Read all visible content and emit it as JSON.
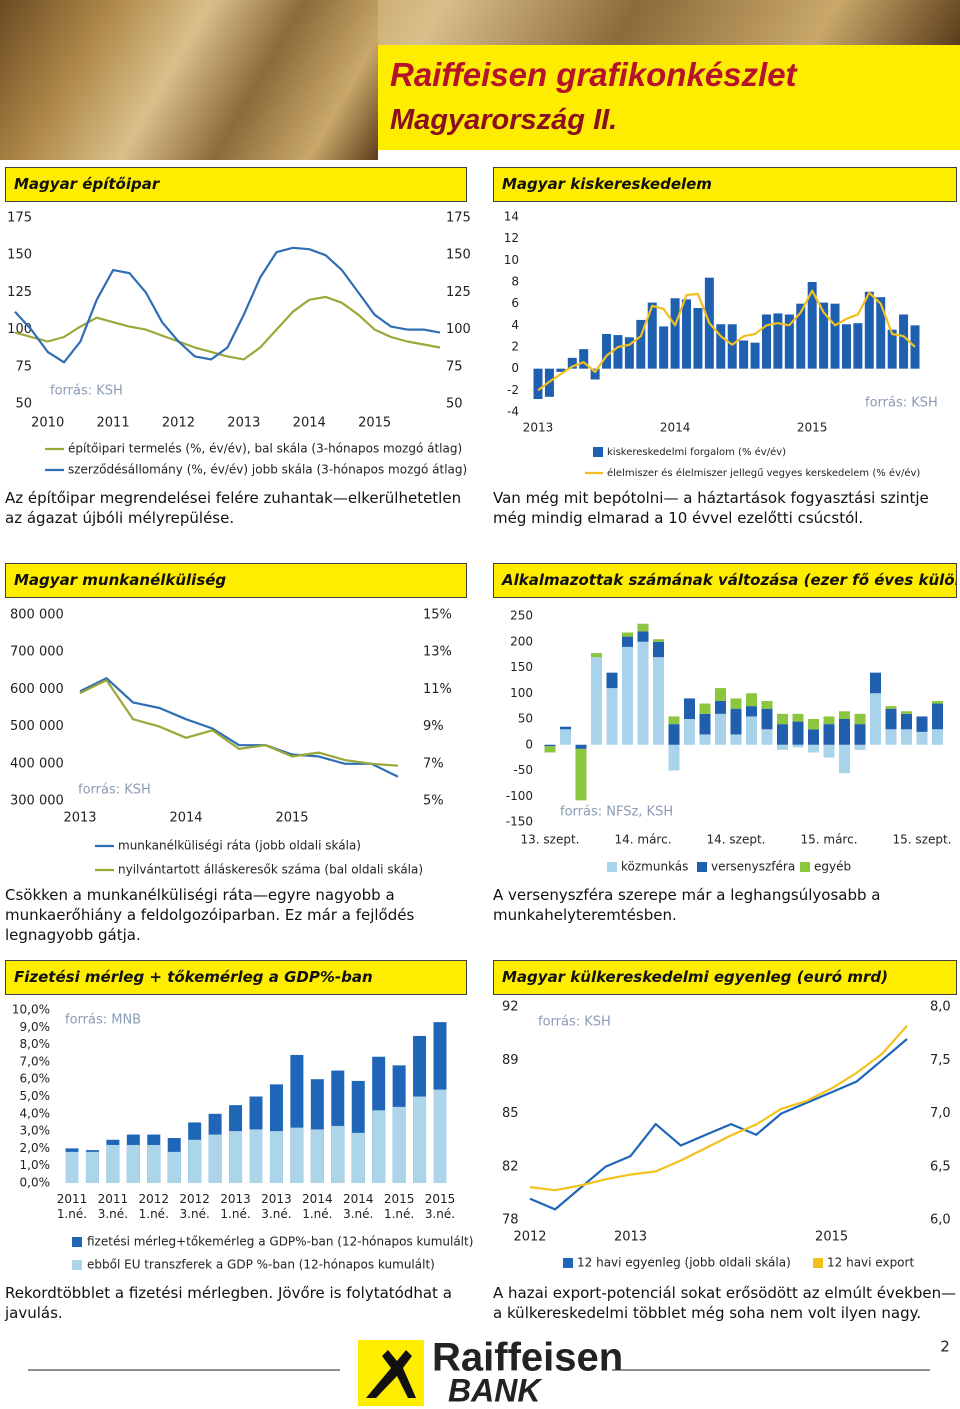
{
  "header": {
    "title": "Raiffeisen grafikonkészlet",
    "subtitle": "Magyarország II."
  },
  "chart_data": [
    {
      "type": "line",
      "title": "Magyar építőipar",
      "source": "forrás: KSH",
      "caption": "Az építőipar megrendelései felére zuhantak—elkerülhetetlen az ágazat újbóli mélyrepülése.",
      "categories": [
        null,
        null,
        "2010",
        null,
        null,
        null,
        "2011",
        null,
        null,
        null,
        "2012",
        null,
        null,
        null,
        "2013",
        null,
        null,
        null,
        "2014",
        null,
        null,
        null,
        "2015",
        null,
        null,
        null,
        null
      ],
      "series": [
        {
          "name": "építőipari termelés (%, év/év), bal skála (3-hónapos mozgó átlag)",
          "color": "#9aa83a",
          "values": [
            98,
            95,
            92,
            95,
            102,
            108,
            105,
            102,
            100,
            96,
            92,
            88,
            85,
            82,
            80,
            88,
            100,
            112,
            120,
            122,
            118,
            110,
            100,
            95,
            92,
            90,
            88
          ]
        },
        {
          "name": "szerződésállomány (%, év/év) jobb skála (3-hónapos mozgó átlag)",
          "color": "#2f6db5",
          "axis": "y2",
          "values": [
            112,
            100,
            85,
            78,
            92,
            120,
            140,
            138,
            125,
            105,
            92,
            82,
            80,
            88,
            110,
            135,
            152,
            155,
            154,
            150,
            140,
            125,
            110,
            102,
            100,
            100,
            98
          ]
        }
      ],
      "ylim": [
        50,
        175
      ],
      "yticks": [
        50,
        75,
        100,
        125,
        150,
        175
      ],
      "y2lim": [
        50,
        175
      ],
      "y2ticks": [
        50,
        75,
        100,
        125,
        150,
        175
      ],
      "grid": false,
      "legend": "bottom"
    },
    {
      "type": "bar",
      "title": "Magyar kiskereskedelem",
      "source": "forrás: KSH",
      "caption": "Van még mit bepótolni— a háztartások fogyasztási szintje még mindig elmarad a 10 évvel ezelőtti csúcstól.",
      "categories": [
        "2013",
        null,
        null,
        null,
        null,
        null,
        null,
        null,
        null,
        null,
        null,
        null,
        "2014",
        null,
        null,
        null,
        null,
        null,
        null,
        null,
        null,
        null,
        null,
        null,
        "2015",
        null,
        null,
        null,
        null,
        null,
        null,
        null,
        null,
        null
      ],
      "series": [
        {
          "name": "kiskereskedelmi forgalom (% év/év)",
          "color": "#1f5fb0",
          "values": [
            -2.8,
            -2.6,
            -0.3,
            1.0,
            1.8,
            -1.0,
            3.2,
            3.1,
            2.9,
            4.5,
            6.1,
            3.9,
            6.5,
            6.4,
            5.6,
            8.4,
            4.1,
            4.1,
            2.6,
            2.4,
            5.0,
            5.1,
            5.0,
            6.0,
            8.0,
            6.1,
            6.0,
            4.1,
            4.2,
            7.1,
            6.6,
            3.6,
            5.0,
            4.0
          ]
        },
        {
          "name": "élelmiszer és élelmiszer jellegű vegyes kerskedelem (% év/év)",
          "type": "line",
          "color": "#f2c01e",
          "values": [
            -2.0,
            -1.2,
            -0.5,
            0.2,
            0.6,
            -0.3,
            1.2,
            2.0,
            2.2,
            3.0,
            5.8,
            5.5,
            4.0,
            6.8,
            6.9,
            4.2,
            3.0,
            2.2,
            3.0,
            3.2,
            4.0,
            4.2,
            4.0,
            5.2,
            7.2,
            5.2,
            4.0,
            4.6,
            5.0,
            7.0,
            6.0,
            3.2,
            3.0,
            2.0
          ]
        }
      ],
      "ylim": [
        -4,
        14
      ],
      "yticks": [
        -4,
        -2,
        0,
        2,
        4,
        6,
        8,
        10,
        12,
        14
      ],
      "grid": false,
      "legend": "bottom"
    },
    {
      "type": "line",
      "title": "Magyar munkanélküliség",
      "source": "forrás: KSH",
      "caption": "Csökken a munkanélküliségi ráta—egyre nagyobb a munkaerőhiány a feldolgozóiparban. Ez már a fejlődés legnagyobb gátja.",
      "categories": [
        "2013",
        null,
        null,
        null,
        "2014",
        null,
        null,
        null,
        "2015",
        null,
        null,
        null,
        null
      ],
      "series": [
        {
          "name": "munkanélküliségi ráta (jobb oldali skála)",
          "color": "#2f6db5",
          "axis": "y2",
          "values": [
            10.9,
            11.6,
            10.3,
            10.0,
            9.4,
            8.9,
            8.0,
            8.0,
            7.5,
            7.4,
            7.0,
            7.0,
            6.3
          ]
        },
        {
          "name": "nyilvántartott álláskeresők száma (bal oldali skála)",
          "color": "#9aa83a",
          "values": [
            590000,
            625000,
            520000,
            500000,
            470000,
            490000,
            440000,
            450000,
            420000,
            430000,
            410000,
            400000,
            395000
          ]
        }
      ],
      "ylim": [
        300000,
        800000
      ],
      "yticks": [
        {
          "value": 300000,
          "label": "300 000"
        },
        {
          "value": 400000,
          "label": "400 000"
        },
        {
          "value": 500000,
          "label": "500 000"
        },
        {
          "value": 600000,
          "label": "600 000"
        },
        {
          "value": 700000,
          "label": "700 000"
        },
        {
          "value": 800000,
          "label": "800 000"
        }
      ],
      "y2lim": [
        5,
        15
      ],
      "y2ticks": [
        {
          "value": 5,
          "label": "5%"
        },
        {
          "value": 7,
          "label": "7%"
        },
        {
          "value": 9,
          "label": "9%"
        },
        {
          "value": 11,
          "label": "11%"
        },
        {
          "value": 13,
          "label": "13%"
        },
        {
          "value": 15,
          "label": "15%"
        }
      ],
      "grid": false,
      "legend": "bottom"
    },
    {
      "type": "bar",
      "barmode": "stack",
      "title": "Alkalmazottak számának változása (ezer fő éves különbség)",
      "source": "forrás: NFSz, KSH",
      "caption": "A versenyszféra szerepe már a leghangsúlyosabb a munkahelyteremtésben.",
      "categories": [
        "13. szept.",
        null,
        null,
        null,
        null,
        null,
        "14. márc.",
        null,
        null,
        null,
        null,
        null,
        "14. szept.",
        null,
        null,
        null,
        null,
        null,
        "15. márc.",
        null,
        null,
        null,
        null,
        null,
        "15. szept.",
        null
      ],
      "series": [
        {
          "name": "közmunkás",
          "color": "#a9d3ea",
          "values": [
            0,
            30,
            0,
            170,
            110,
            190,
            200,
            170,
            -50,
            50,
            20,
            60,
            20,
            55,
            30,
            -10,
            -5,
            -15,
            -25,
            -55,
            -10,
            100,
            30,
            30,
            25,
            30
          ]
        },
        {
          "name": "versenyszféra",
          "color": "#1f5fae",
          "values": [
            -3,
            5,
            -8,
            0,
            30,
            20,
            20,
            30,
            40,
            40,
            40,
            25,
            50,
            20,
            40,
            40,
            45,
            30,
            40,
            50,
            40,
            40,
            40,
            30,
            30,
            50
          ]
        },
        {
          "name": "egyéb",
          "color": "#8cc63f",
          "values": [
            -12,
            0,
            -100,
            8,
            0,
            8,
            15,
            5,
            15,
            0,
            20,
            25,
            20,
            25,
            15,
            20,
            15,
            20,
            15,
            15,
            20,
            0,
            5,
            5,
            0,
            5
          ]
        }
      ],
      "ylim": [
        -150,
        250
      ],
      "yticks": [
        -150,
        -100,
        -50,
        0,
        50,
        100,
        150,
        200,
        250
      ],
      "grid": false,
      "legend": "bottom"
    },
    {
      "type": "bar",
      "barmode": "overlay",
      "title": "Fizetési mérleg + tőkemérleg a GDP%-ban",
      "source": "forrás: MNB",
      "caption": "Rekordtöbblet a fizetési mérlegben. Jövőre is folytatódhat a javulás.",
      "categories": [
        "2011 1.né.",
        null,
        "2011 3.né.",
        null,
        "2012 1.né.",
        null,
        "2012 3.né.",
        null,
        "2013 1.né.",
        null,
        "2013 3.né.",
        null,
        "2014 1.né.",
        null,
        "2014 3.né.",
        null,
        "2015 1.né.",
        null,
        "2015 3.né."
      ],
      "series": [
        {
          "name": "fizetési mérleg+tőkemérleg a GDP%-ban (12-hónapos kumulált)",
          "color": "#1f65b8",
          "values": [
            2.0,
            1.9,
            2.5,
            2.8,
            2.8,
            2.6,
            3.5,
            4.0,
            4.5,
            5.0,
            5.7,
            7.4,
            6.0,
            6.5,
            5.9,
            7.3,
            6.8,
            8.5,
            9.3
          ]
        },
        {
          "name": "ebből EU transzferek a GDP %-ban (12-hónapos kumulált)",
          "color": "#add5ea",
          "values": [
            1.8,
            1.8,
            2.2,
            2.2,
            2.2,
            1.8,
            2.5,
            2.8,
            3.0,
            3.1,
            3.0,
            3.2,
            3.1,
            3.3,
            2.9,
            4.2,
            4.4,
            5.0,
            5.4
          ]
        }
      ],
      "ylim": [
        0,
        10
      ],
      "yticks": [
        {
          "value": 0,
          "label": "0,0%"
        },
        {
          "value": 1,
          "label": "1,0%"
        },
        {
          "value": 2,
          "label": "2,0%"
        },
        {
          "value": 3,
          "label": "3,0%"
        },
        {
          "value": 4,
          "label": "4,0%"
        },
        {
          "value": 5,
          "label": "5,0%"
        },
        {
          "value": 6,
          "label": "6,0%"
        },
        {
          "value": 7,
          "label": "7,0%"
        },
        {
          "value": 8,
          "label": "8,0%"
        },
        {
          "value": 9,
          "label": "9,0%"
        },
        {
          "value": 10,
          "label": "10,0%"
        }
      ],
      "grid": false,
      "legend": "bottom"
    },
    {
      "type": "line",
      "title": "Magyar külkereskedelmi egyenleg (euró mrd)",
      "source": "forrás: KSH",
      "caption": "A hazai export-potenciál sokat erősödött az elmúlt években— a külkereskedelmi többlet még soha nem volt ilyen nagy.",
      "categories": [
        "2012",
        null,
        null,
        null,
        "2013",
        null,
        null,
        null,
        null,
        null,
        null,
        null,
        "2015",
        null,
        null,
        null
      ],
      "series": [
        {
          "name": "12 havi egyenleg (jobb oldali skála)",
          "color": "#1f65b8",
          "axis": "y2",
          "values": [
            6.2,
            6.1,
            6.3,
            6.5,
            6.6,
            6.9,
            6.7,
            6.8,
            6.9,
            6.8,
            7.0,
            7.1,
            7.2,
            7.3,
            7.5,
            7.7
          ]
        },
        {
          "name": "12 havi export",
          "color": "#f2c21b",
          "values": [
            80.5,
            80.3,
            80.6,
            81.0,
            81.3,
            81.5,
            82.2,
            83.0,
            83.8,
            84.5,
            85.5,
            86.0,
            86.8,
            87.8,
            89.0,
            90.8
          ]
        }
      ],
      "ylim": [
        78.4,
        92
      ],
      "yticks": [
        {
          "value": 78.4,
          "label": "78"
        },
        {
          "value": 81.8,
          "label": "82"
        },
        {
          "value": 85.2,
          "label": "85"
        },
        {
          "value": 88.6,
          "label": "89"
        },
        {
          "value": 92,
          "label": "92"
        }
      ],
      "y2lim": [
        6,
        8
      ],
      "y2ticks": [
        {
          "value": 6,
          "label": "6,0"
        },
        {
          "value": 6.5,
          "label": "6,5"
        },
        {
          "value": 7,
          "label": "7,0"
        },
        {
          "value": 7.5,
          "label": "7,5"
        },
        {
          "value": 8,
          "label": "8,0"
        }
      ],
      "grid": false,
      "legend": "bottom"
    }
  ],
  "footer": {
    "brand": "Raiffeisen",
    "bank": "BANK",
    "page": "2"
  }
}
